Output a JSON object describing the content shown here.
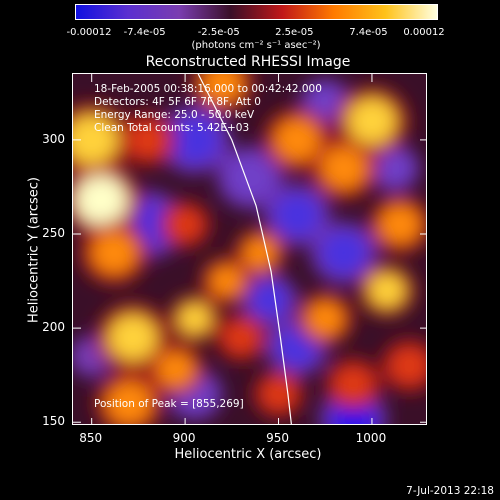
{
  "chart_data": {
    "type": "heatmap",
    "title": "Reconstructed RHESSI Image",
    "xlabel": "Heliocentric X (arcsec)",
    "ylabel": "Heliocentric Y (arcsec)",
    "xlim": [
      840,
      1030
    ],
    "ylim": [
      148,
      335
    ],
    "x_ticks": [
      850,
      900,
      950,
      1000
    ],
    "y_ticks": [
      150,
      200,
      250,
      300
    ],
    "colorbar": {
      "ticks": [
        "-0.00012",
        "-7.4e-05",
        "-2.5e-05",
        "2.5e-05",
        "7.4e-05",
        "0.00012"
      ],
      "tick_values": [
        -0.00012,
        -7.4e-05,
        -2.5e-05,
        2.5e-05,
        7.4e-05,
        0.00012
      ],
      "range": [
        -0.00012,
        0.00012
      ],
      "units": "(photons cm⁻² s⁻¹ asec⁻²)",
      "colormap": [
        "#1010e0",
        "#5a2fd0",
        "#7a3db0",
        "#3a0f28",
        "#c01818",
        "#ff7a00",
        "#ffc21a",
        "#ffffe0"
      ]
    },
    "annotations": [
      "18-Feb-2005 00:38:16.000  to 00:42:42.000",
      "Detectors: 4F 5F 6F 7F 8F, Att 0",
      "Energy Range: 25.0 - 50.0 keV",
      "Clean     Total counts: 5.42E+03"
    ],
    "peak_label": "Position of Peak = [855,269]",
    "peak": [
      855,
      269
    ],
    "limb_curve": [
      [
        907,
        335
      ],
      [
        925,
        300
      ],
      [
        938,
        265
      ],
      [
        946,
        230
      ],
      [
        951,
        195
      ],
      [
        955,
        165
      ],
      [
        957,
        148
      ]
    ],
    "hotspots": [
      {
        "x": 855,
        "y": 268,
        "v": 1.0,
        "r": 14
      },
      {
        "x": 850,
        "y": 300,
        "v": 0.8,
        "r": 14
      },
      {
        "x": 862,
        "y": 240,
        "v": 0.7,
        "r": 12
      },
      {
        "x": 872,
        "y": 195,
        "v": 0.85,
        "r": 13
      },
      {
        "x": 870,
        "y": 160,
        "v": 0.7,
        "r": 12
      },
      {
        "x": 880,
        "y": 300,
        "v": 0.55,
        "r": 10
      },
      {
        "x": 895,
        "y": 178,
        "v": 0.65,
        "r": 10
      },
      {
        "x": 905,
        "y": 205,
        "v": 0.9,
        "r": 9
      },
      {
        "x": 922,
        "y": 225,
        "v": 0.75,
        "r": 9
      },
      {
        "x": 930,
        "y": 195,
        "v": 0.6,
        "r": 9
      },
      {
        "x": 940,
        "y": 240,
        "v": 0.7,
        "r": 9
      },
      {
        "x": 920,
        "y": 330,
        "v": 0.75,
        "r": 11
      },
      {
        "x": 960,
        "y": 300,
        "v": 0.75,
        "r": 12
      },
      {
        "x": 985,
        "y": 285,
        "v": 0.7,
        "r": 12
      },
      {
        "x": 1000,
        "y": 310,
        "v": 0.8,
        "r": 13
      },
      {
        "x": 1015,
        "y": 255,
        "v": 0.7,
        "r": 11
      },
      {
        "x": 1008,
        "y": 220,
        "v": 0.8,
        "r": 10
      },
      {
        "x": 975,
        "y": 205,
        "v": 0.65,
        "r": 10
      },
      {
        "x": 990,
        "y": 170,
        "v": 0.6,
        "r": 10
      },
      {
        "x": 1020,
        "y": 180,
        "v": 0.55,
        "r": 10
      },
      {
        "x": 950,
        "y": 165,
        "v": 0.55,
        "r": 9
      },
      {
        "x": 900,
        "y": 255,
        "v": 0.5,
        "r": 9
      }
    ],
    "coldspots": [
      {
        "x": 880,
        "y": 255,
        "v": -0.8,
        "r": 13
      },
      {
        "x": 905,
        "y": 300,
        "v": -0.85,
        "r": 13
      },
      {
        "x": 935,
        "y": 280,
        "v": -0.7,
        "r": 12
      },
      {
        "x": 905,
        "y": 165,
        "v": -0.7,
        "r": 10
      },
      {
        "x": 945,
        "y": 215,
        "v": -0.8,
        "r": 10
      },
      {
        "x": 960,
        "y": 260,
        "v": -0.75,
        "r": 12
      },
      {
        "x": 985,
        "y": 240,
        "v": -0.8,
        "r": 12
      },
      {
        "x": 960,
        "y": 190,
        "v": -0.85,
        "r": 11
      },
      {
        "x": 990,
        "y": 152,
        "v": -1.0,
        "r": 12
      },
      {
        "x": 1012,
        "y": 285,
        "v": -0.6,
        "r": 9
      },
      {
        "x": 975,
        "y": 320,
        "v": -0.55,
        "r": 9
      },
      {
        "x": 850,
        "y": 185,
        "v": -0.5,
        "r": 8
      }
    ]
  },
  "timestamp": "7-Jul-2013 22:18"
}
